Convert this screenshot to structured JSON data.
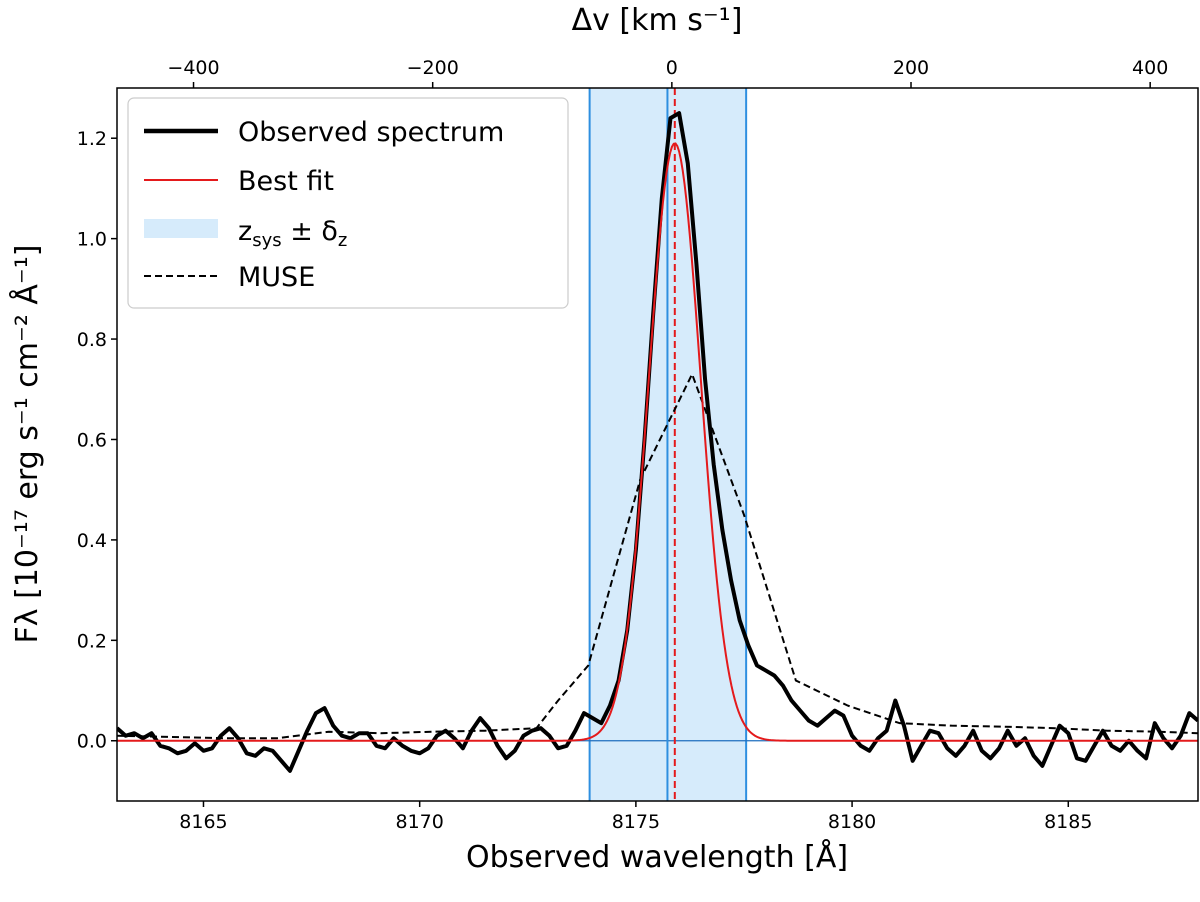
{
  "chart_data": {
    "type": "line",
    "xlabel": "Observed wavelength [Å]",
    "x2label": "Δv [km s⁻¹]",
    "ylabel": "Fλ [10⁻¹⁷ erg s⁻¹ cm⁻² Å⁻¹]",
    "xlim": [
      8163,
      8188
    ],
    "ylim": [
      -0.12,
      1.3
    ],
    "x2lim": [
      -464,
      440
    ],
    "xticks": [
      8165,
      8170,
      8175,
      8180,
      8185
    ],
    "yticks": [
      0.0,
      0.2,
      0.4,
      0.6,
      0.8,
      1.0,
      1.2
    ],
    "x2ticks": [
      -400,
      -200,
      0,
      200,
      400
    ],
    "legend_position": "upper-left",
    "legend": [
      {
        "label": "Observed spectrum",
        "style": "thick-solid",
        "color": "#000000"
      },
      {
        "label": "Best fit",
        "style": "solid",
        "color": "#e41a1c"
      },
      {
        "label": "z",
        "sub": "sys",
        "mid": " ± δ",
        "sub2": "z",
        "style": "band",
        "color": "#d6ebfb"
      },
      {
        "label": "MUSE",
        "style": "dashed",
        "color": "#000000"
      }
    ],
    "band": {
      "x": [
        8173.93,
        8177.55
      ],
      "color": "#d6ebfb",
      "edge_color": "#2e8fe0"
    },
    "vlines": [
      {
        "x": 8175.73,
        "color": "#2e8fe0",
        "style": "solid"
      },
      {
        "x": 8175.9,
        "color": "#e41a1c",
        "style": "dashed"
      }
    ],
    "hline": {
      "y": 0.0,
      "color": "#1f6fbf"
    },
    "series": [
      {
        "name": "Observed spectrum",
        "color": "#000000",
        "x": [
          8163.0,
          8163.2,
          8163.4,
          8163.6,
          8163.8,
          8164.0,
          8164.2,
          8164.4,
          8164.6,
          8164.8,
          8165.0,
          8165.2,
          8165.4,
          8165.6,
          8165.8,
          8166.0,
          8166.2,
          8166.4,
          8166.6,
          8166.8,
          8167.0,
          8167.2,
          8167.4,
          8167.6,
          8167.8,
          8168.0,
          8168.2,
          8168.4,
          8168.6,
          8168.8,
          8169.0,
          8169.2,
          8169.4,
          8169.6,
          8169.8,
          8170.0,
          8170.2,
          8170.4,
          8170.6,
          8170.8,
          8171.0,
          8171.2,
          8171.4,
          8171.6,
          8171.8,
          8172.0,
          8172.2,
          8172.4,
          8172.6,
          8172.8,
          8173.0,
          8173.2,
          8173.4,
          8173.6,
          8173.8,
          8174.0,
          8174.2,
          8174.4,
          8174.6,
          8174.8,
          8175.0,
          8175.2,
          8175.4,
          8175.6,
          8175.8,
          8176.0,
          8176.2,
          8176.4,
          8176.6,
          8176.8,
          8177.0,
          8177.2,
          8177.4,
          8177.6,
          8177.8,
          8178.0,
          8178.2,
          8178.4,
          8178.6,
          8178.8,
          8179.0,
          8179.2,
          8179.4,
          8179.6,
          8179.8,
          8180.0,
          8180.2,
          8180.4,
          8180.6,
          8180.8,
          8181.0,
          8181.2,
          8181.4,
          8181.6,
          8181.8,
          8182.0,
          8182.2,
          8182.4,
          8182.6,
          8182.8,
          8183.0,
          8183.2,
          8183.4,
          8183.6,
          8183.8,
          8184.0,
          8184.2,
          8184.4,
          8184.6,
          8184.8,
          8185.0,
          8185.2,
          8185.4,
          8185.6,
          8185.8,
          8186.0,
          8186.2,
          8186.4,
          8186.6,
          8186.8,
          8187.0,
          8187.2,
          8187.4,
          8187.6,
          8187.8,
          8188.0
        ],
        "y": [
          0.025,
          0.01,
          0.015,
          0.005,
          0.015,
          -0.01,
          -0.015,
          -0.025,
          -0.02,
          -0.005,
          -0.02,
          -0.015,
          0.01,
          0.025,
          0.005,
          -0.025,
          -0.03,
          -0.015,
          -0.02,
          -0.04,
          -0.06,
          -0.02,
          0.02,
          0.055,
          0.065,
          0.03,
          0.01,
          0.005,
          0.015,
          0.015,
          -0.01,
          -0.015,
          0.005,
          -0.01,
          -0.02,
          -0.025,
          -0.015,
          0.01,
          0.02,
          0.005,
          -0.015,
          0.02,
          0.045,
          0.025,
          -0.01,
          -0.035,
          -0.02,
          0.01,
          0.02,
          0.025,
          0.01,
          -0.015,
          -0.01,
          0.02,
          0.055,
          0.045,
          0.035,
          0.07,
          0.12,
          0.22,
          0.38,
          0.6,
          0.85,
          1.08,
          1.24,
          1.25,
          1.15,
          0.95,
          0.72,
          0.55,
          0.42,
          0.32,
          0.24,
          0.19,
          0.15,
          0.14,
          0.13,
          0.11,
          0.08,
          0.06,
          0.04,
          0.03,
          0.045,
          0.06,
          0.05,
          0.01,
          -0.01,
          -0.02,
          0.005,
          0.02,
          0.08,
          0.03,
          -0.04,
          -0.01,
          0.02,
          0.015,
          -0.015,
          -0.03,
          -0.01,
          0.02,
          -0.02,
          -0.035,
          -0.015,
          0.02,
          -0.01,
          0.005,
          -0.03,
          -0.05,
          -0.01,
          0.03,
          0.015,
          -0.035,
          -0.04,
          -0.01,
          0.02,
          -0.01,
          -0.02,
          0.0,
          -0.02,
          -0.035,
          0.035,
          0.005,
          -0.015,
          0.01,
          0.055,
          0.04
        ]
      },
      {
        "name": "Best fit",
        "color": "#e41a1c",
        "model": "gaussian",
        "amplitude": 1.19,
        "center": 8175.9,
        "sigma": 0.6,
        "x_range": [
          8163,
          8188
        ]
      },
      {
        "name": "MUSE",
        "color": "#000000",
        "x": [
          8163.0,
          8165.5,
          8166.7,
          8167.9,
          8169.1,
          8170.3,
          8171.5,
          8172.7,
          8173.2,
          8173.9,
          8175.1,
          8176.3,
          8177.5,
          8178.7,
          8179.9,
          8181.1,
          8182.3,
          8183.5,
          8184.7,
          8185.9,
          8187.1,
          8188.0
        ],
        "y": [
          0.01,
          0.005,
          0.005,
          0.018,
          0.015,
          0.018,
          0.02,
          0.025,
          0.08,
          0.15,
          0.52,
          0.73,
          0.45,
          0.12,
          0.07,
          0.035,
          0.03,
          0.028,
          0.025,
          0.02,
          0.018,
          0.015
        ]
      }
    ]
  }
}
